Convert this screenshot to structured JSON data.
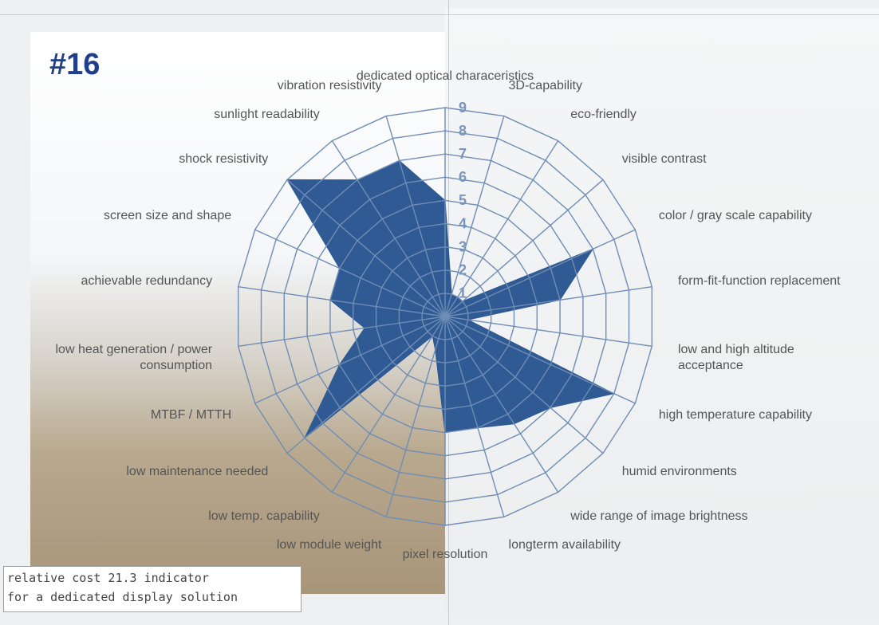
{
  "chart_data": {
    "type": "radar",
    "title": "#16",
    "categories": [
      "dedicated optical characeristics",
      "3D-capability",
      "eco-friendly",
      "visible contrast",
      "color / gray scale capability",
      "form-fit-function replacement",
      "low and high altitude acceptance",
      "high temperature capability",
      "humid environments",
      "wide range of image brightness",
      "longterm availability",
      "pixel resolution",
      "low module weight",
      "low temp. capability",
      "low maintenance needed",
      "MTBF / MTTH",
      "low heat generation / power consumption",
      "achievable redundancy",
      "screen size and shape",
      "shock  resistivity",
      "sunlight readability",
      "vibration resistivity"
    ],
    "values": [
      5,
      1,
      1,
      1,
      7,
      5,
      1,
      8,
      6,
      5.5,
      5,
      5,
      1.5,
      1,
      8,
      5,
      3.5,
      5,
      5,
      9,
      7,
      7
    ],
    "color": "#2f5a94",
    "rlim": [
      0,
      9
    ],
    "rticks": [
      1,
      2,
      3,
      4,
      5,
      6,
      7,
      8,
      9
    ],
    "grid": true,
    "note": [
      "relative cost 21.3 indicator",
      "for a dedicated display solution"
    ]
  }
}
